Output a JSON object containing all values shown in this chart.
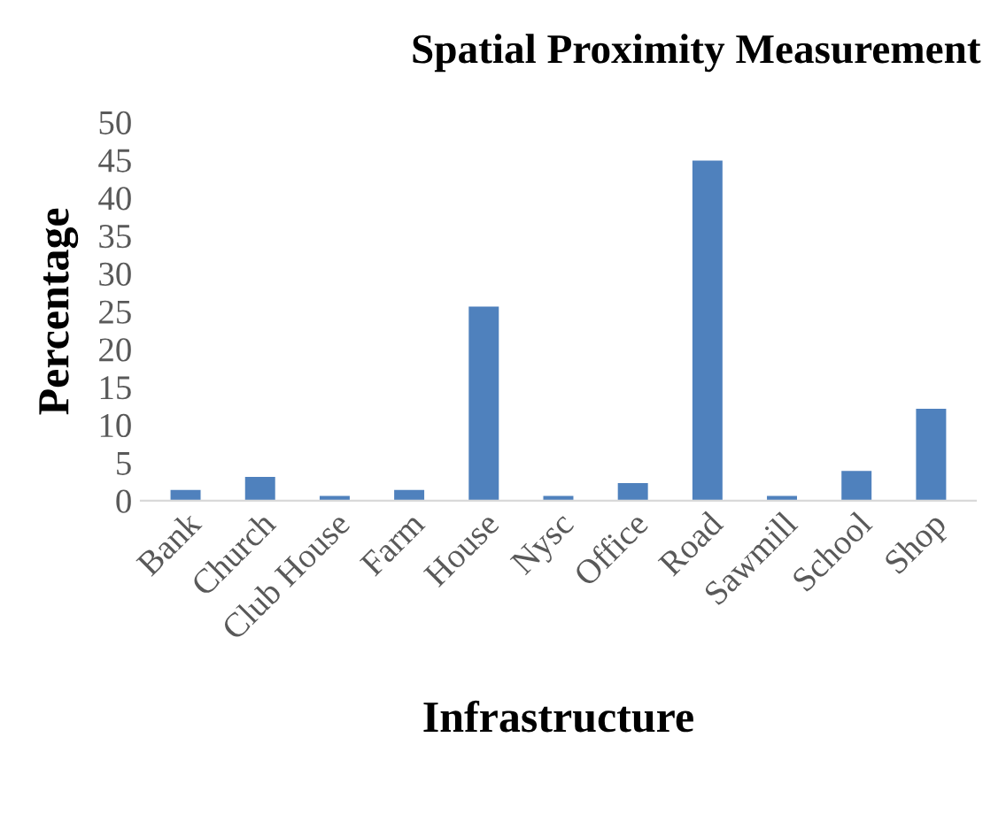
{
  "chart_data": {
    "type": "bar",
    "title": "Spatial Proximity Measurement",
    "xlabel": "Infrastructure",
    "ylabel": "Percentage",
    "categories": [
      "Bank",
      "Church",
      "Club House",
      "Farm",
      "House",
      "Nysc",
      "Office",
      "Road",
      "Sawmill",
      "School",
      "Shop"
    ],
    "values": [
      1.5,
      3.2,
      0.7,
      1.5,
      25.7,
      0.7,
      2.4,
      45,
      0.7,
      4,
      12.2
    ],
    "color": "#4f81bd",
    "ylim": [
      0,
      50
    ],
    "yticks": [
      0,
      5,
      10,
      15,
      20,
      25,
      30,
      35,
      40,
      45,
      50
    ],
    "grid": false,
    "legend": false
  }
}
